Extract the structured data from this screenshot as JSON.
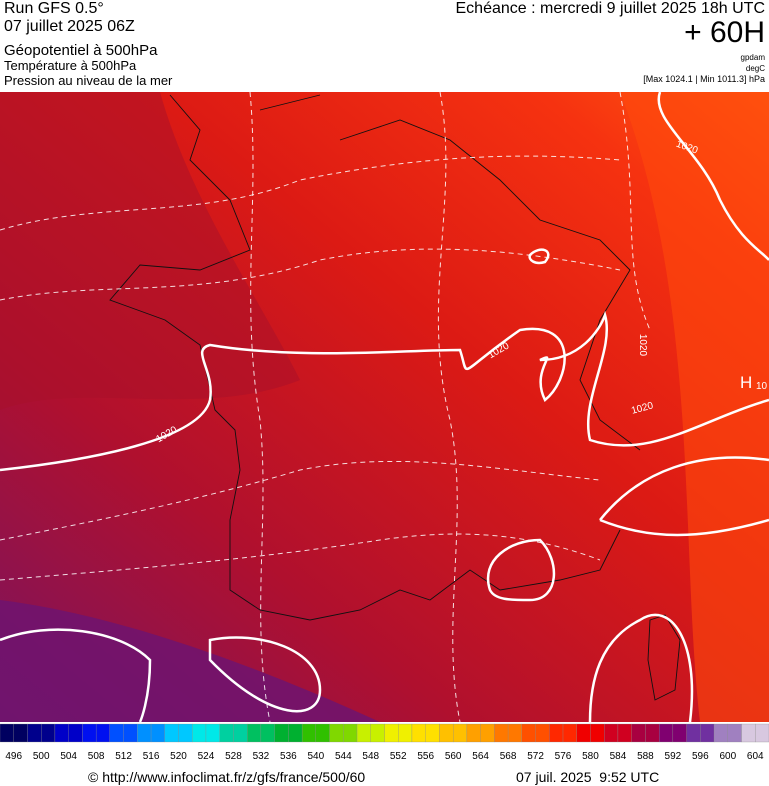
{
  "header": {
    "run": "Run GFS 0.5°",
    "date": "07 juillet 2025 06Z",
    "param1": "Géopotentiel à 500hPa",
    "param2": "Température à 500hPa",
    "param3": "Pression au niveau de la mer",
    "echeance": "Echéance : mercredi 9 juillet 2025 18h UTC",
    "horizon": "+ 60H",
    "unit1": "gpdam",
    "unit2": "degC",
    "pressure_range": "[Max 1024.1 | Min 1011.3] hPa"
  },
  "map": {
    "isobar_labels": [
      1020,
      1020,
      1020,
      1020,
      1020
    ],
    "high_label": "H",
    "partial_label": 10
  },
  "colorbar": {
    "values": [
      496,
      500,
      504,
      508,
      512,
      516,
      520,
      524,
      528,
      532,
      536,
      540,
      544,
      548,
      552,
      556,
      560,
      564,
      568,
      572,
      576,
      580,
      584,
      588,
      592,
      596,
      600,
      604
    ],
    "colors": [
      "#000060",
      "#00008c",
      "#0000c8",
      "#0010f0",
      "#0050ff",
      "#0090ff",
      "#00c8ff",
      "#00e8e8",
      "#00d0a0",
      "#00c060",
      "#00b030",
      "#30c000",
      "#80d800",
      "#c8f000",
      "#f0f000",
      "#ffe000",
      "#ffc000",
      "#ffa000",
      "#ff7800",
      "#ff5000",
      "#ff2800",
      "#f00000",
      "#d00020",
      "#a80040",
      "#800070",
      "#7030a0",
      "#a080c0",
      "#d8c8e0"
    ]
  },
  "footer": {
    "url": "© http://www.infoclimat.fr/z/gfs/france/500/60",
    "timestamp": "07 juil. 2025  9:52 UTC"
  }
}
